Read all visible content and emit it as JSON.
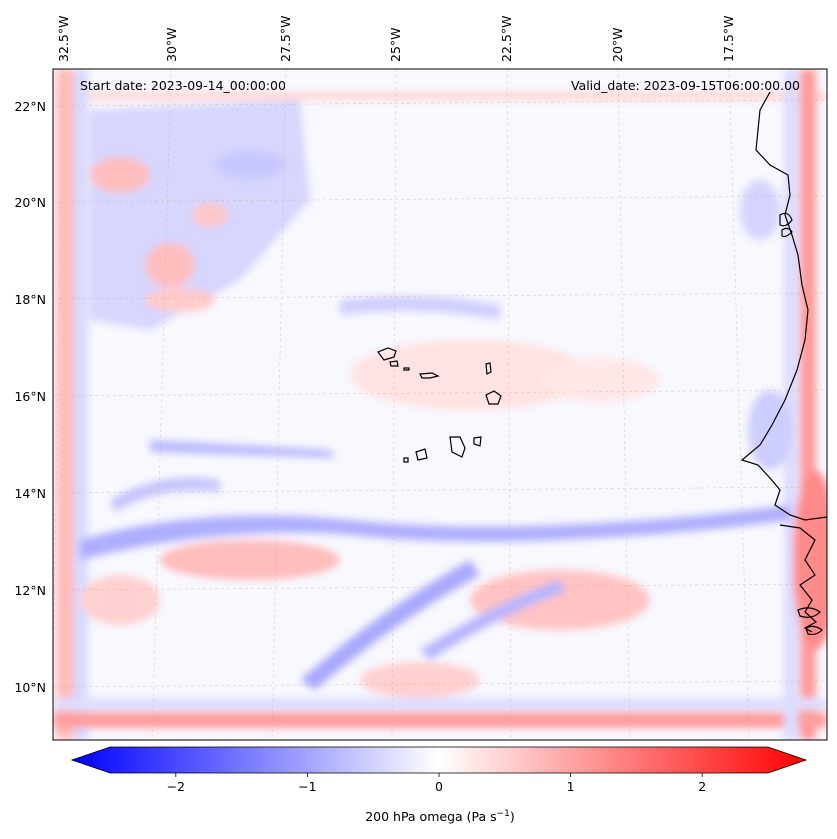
{
  "map": {
    "start_date_label": "Start date: 2023-09-14_00:00:00",
    "valid_date_label": "Valid_date: 2023-09-15T06:00:00.00",
    "longitude_labels": [
      "32.5°W",
      "30°W",
      "27.5°W",
      "25°W",
      "22.5°W",
      "20°W",
      "17.5°W"
    ],
    "latitude_labels": [
      "22°N",
      "20°N",
      "18°N",
      "16°N",
      "14°N",
      "12°N",
      "10°N"
    ],
    "coastline_color": "#000000",
    "gridline_color": "#d9a27a",
    "field_colormap": "bwr"
  },
  "colorbar": {
    "label_main": "200 hPa omega (Pa s",
    "label_exp": "−1",
    "label_close": ")",
    "tick_labels": [
      "−2",
      "−1",
      "0",
      "1",
      "2"
    ],
    "tick_values": [
      -2,
      -1,
      0,
      1,
      2
    ],
    "vmin": -2.5,
    "vmax": 2.5,
    "extend": "both",
    "colors": {
      "min": "#0000ff",
      "mid": "#ffffff",
      "max": "#ff0000"
    }
  }
}
